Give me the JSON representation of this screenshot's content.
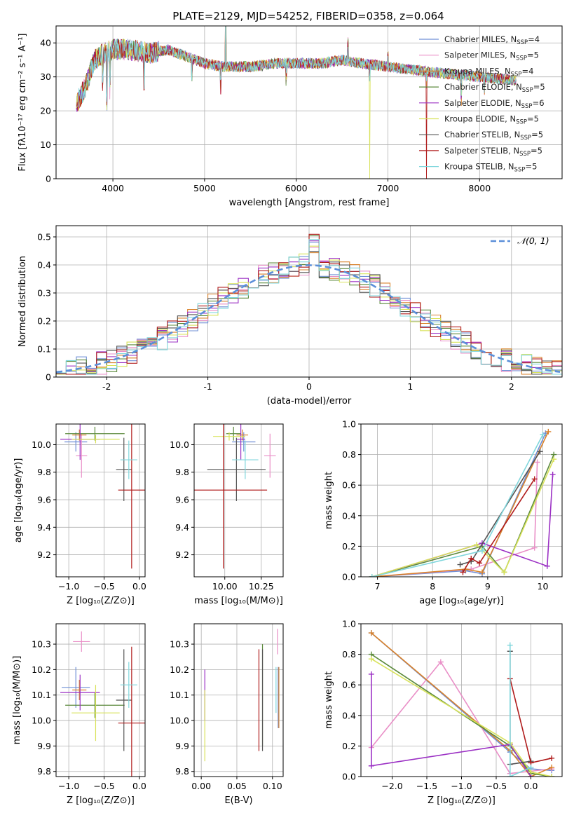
{
  "title": "PLATE=2129, MJD=54252, FIBERID=0358, z=0.064",
  "colors": [
    "#6f8fd6",
    "#e98fc7",
    "#d9822b",
    "#5c8a3c",
    "#9b30c4",
    "#d8e25a",
    "#555555",
    "#b01c1c",
    "#7fd6dc"
  ],
  "chart_data": [
    {
      "type": "line",
      "id": "spectrum",
      "xlabel": "wavelength [Angstrom, rest frame]",
      "ylabel": "Flux [fλ10⁻¹⁷ erg cm⁻² s⁻¹ A⁻¹]",
      "xlim": [
        3380,
        8900
      ],
      "ylim": [
        0,
        45
      ],
      "xticks": [
        4000,
        5000,
        6000,
        7000,
        8000
      ],
      "yticks": [
        0,
        10,
        20,
        30,
        40
      ],
      "x_range": [
        3600,
        8400
      ],
      "continuum_anchors": [
        [
          3600,
          22
        ],
        [
          3700,
          27
        ],
        [
          3800,
          35
        ],
        [
          3900,
          37
        ],
        [
          4000,
          38
        ],
        [
          4200,
          38
        ],
        [
          4400,
          37
        ],
        [
          4600,
          38
        ],
        [
          4800,
          36
        ],
        [
          5000,
          34
        ],
        [
          5200,
          33
        ],
        [
          5500,
          33
        ],
        [
          5800,
          34
        ],
        [
          6000,
          34
        ],
        [
          6300,
          34
        ],
        [
          6500,
          35
        ],
        [
          6700,
          34
        ],
        [
          7000,
          33
        ],
        [
          7300,
          32
        ],
        [
          7600,
          31
        ],
        [
          8000,
          30
        ],
        [
          8400,
          29
        ]
      ],
      "spikes": [
        [
          3933,
          -20
        ],
        [
          3968,
          -12
        ],
        [
          3890,
          -8
        ],
        [
          4340,
          -10
        ],
        [
          4861,
          -6
        ],
        [
          5175,
          -8
        ],
        [
          5230,
          20
        ],
        [
          5890,
          -6
        ],
        [
          6563,
          6
        ],
        [
          6800,
          -34
        ],
        [
          7420,
          -34
        ],
        [
          7000,
          4
        ],
        [
          7800,
          -8
        ],
        [
          8050,
          -4
        ]
      ],
      "legend": [
        {
          "name": "Chabrier MILES",
          "nssp": "4"
        },
        {
          "name": "Salpeter MILES",
          "nssp": "5"
        },
        {
          "name": "Kroupa MILES",
          "nssp": "4"
        },
        {
          "name": "Chabrier ELODIE",
          "nssp": "5"
        },
        {
          "name": "Salpeter ELODIE",
          "nssp": "6"
        },
        {
          "name": "Kroupa ELODIE",
          "nssp": "5"
        },
        {
          "name": "Chabrier STELIB",
          "nssp": "5"
        },
        {
          "name": "Salpeter STELIB",
          "nssp": "5"
        },
        {
          "name": "Kroupa STELIB",
          "nssp": "5"
        }
      ],
      "legend_placement": "upper right"
    },
    {
      "type": "histogram",
      "id": "residuals",
      "xlabel": "(data-model)/error",
      "ylabel": "Normed distribution",
      "xlim": [
        -2.5,
        2.5
      ],
      "ylim": [
        0,
        0.54
      ],
      "xticks": [
        -2,
        -1,
        0,
        1,
        2
      ],
      "yticks": [
        0.0,
        0.1,
        0.2,
        0.3,
        0.4,
        0.5
      ],
      "bin_width": 0.1,
      "gaussian_label": "𝒩(0, 1)",
      "legend_placement": "upper right"
    },
    {
      "type": "errorbar",
      "id": "age_vs_Z",
      "xlabel": "Z [log₁₀(Z/Z⊙)]",
      "ylabel": "age  [log₁₀(age/yr)]",
      "xlim": [
        -1.18,
        0.08
      ],
      "ylim": [
        9.04,
        10.15
      ],
      "xticks": [
        -1.0,
        -0.5,
        0.0
      ],
      "xticklabels": [
        "−1.0",
        "−0.5",
        "0.0"
      ],
      "yticks": [
        9.2,
        9.4,
        9.6,
        9.8,
        10.0
      ],
      "points": [
        {
          "x": -0.9,
          "xerr": 0.16,
          "y": 10.02,
          "yerr": 0.07
        },
        {
          "x": -0.82,
          "xerr": 0.08,
          "y": 9.92,
          "yerr": 0.16
        },
        {
          "x": -0.85,
          "xerr": 0.1,
          "y": 10.07,
          "yerr": 0.04
        },
        {
          "x": -0.63,
          "xerr": 0.42,
          "y": 10.08,
          "yerr": 0.05
        },
        {
          "x": -0.84,
          "xerr": 0.28,
          "y": 10.04,
          "yerr": 0.15
        },
        {
          "x": -0.62,
          "xerr": 0.34,
          "y": 10.04,
          "yerr": 0.03
        },
        {
          "x": -0.22,
          "xerr": 0.11,
          "y": 9.82,
          "yerr": 0.23
        },
        {
          "x": -0.11,
          "xerr": 0.19,
          "y": 9.67,
          "yerr": 0.57
        },
        {
          "x": -0.15,
          "xerr": 0.12,
          "y": 9.89,
          "yerr": 0.14
        }
      ]
    },
    {
      "type": "errorbar",
      "id": "age_vs_mass",
      "xlabel": "mass [log₁₀(M/M⊙)]",
      "xlim": [
        9.79,
        10.4
      ],
      "ylim": [
        9.04,
        10.15
      ],
      "xticks": [
        10.0,
        10.25
      ],
      "xticklabels": [
        "10.00",
        "10.25"
      ],
      "yticks": [
        9.2,
        9.4,
        9.6,
        9.8,
        10.0
      ],
      "points": [
        {
          "x": 10.13,
          "xerr": 0.08,
          "y": 10.02,
          "yerr": 0.07
        },
        {
          "x": 10.31,
          "xerr": 0.04,
          "y": 9.92,
          "yerr": 0.16
        },
        {
          "x": 10.12,
          "xerr": 0.04,
          "y": 10.07,
          "yerr": 0.04
        },
        {
          "x": 10.06,
          "xerr": 0.05,
          "y": 10.08,
          "yerr": 0.05
        },
        {
          "x": 10.11,
          "xerr": 0.03,
          "y": 10.04,
          "yerr": 0.15
        },
        {
          "x": 10.03,
          "xerr": 0.11,
          "y": 10.06,
          "yerr": 0.03
        },
        {
          "x": 10.08,
          "xerr": 0.2,
          "y": 9.82,
          "yerr": 0.23
        },
        {
          "x": 9.99,
          "xerr": 0.3,
          "y": 9.67,
          "yerr": 0.57
        },
        {
          "x": 10.14,
          "xerr": 0.09,
          "y": 9.89,
          "yerr": 0.14
        }
      ]
    },
    {
      "type": "line",
      "id": "massweight_vs_age",
      "xlabel": "age  [log₁₀(age/yr)]",
      "ylabel": "mass weight",
      "xlim": [
        6.7,
        10.35
      ],
      "ylim": [
        0,
        1.0
      ],
      "xticks": [
        7,
        8,
        9,
        10
      ],
      "yticks": [
        0.0,
        0.2,
        0.4,
        0.6,
        0.8,
        1.0
      ],
      "series": [
        {
          "x": [
            6.9,
            8.6,
            8.9,
            10.05
          ],
          "y": [
            0.0,
            0.04,
            0.02,
            0.94
          ]
        },
        {
          "x": [
            6.9,
            8.7,
            9.85,
            9.9
          ],
          "y": [
            0.0,
            0.05,
            0.19,
            0.75
          ]
        },
        {
          "x": [
            6.9,
            8.6,
            8.9,
            10.1
          ],
          "y": [
            0.0,
            0.05,
            0.03,
            0.95
          ]
        },
        {
          "x": [
            6.9,
            8.9,
            9.3,
            10.2
          ],
          "y": [
            0.0,
            0.2,
            0.03,
            0.8
          ]
        },
        {
          "x": [
            6.9,
            8.9,
            10.08,
            10.18
          ],
          "y": [
            0.0,
            0.22,
            0.07,
            0.67
          ]
        },
        {
          "x": [
            6.9,
            8.8,
            9.3,
            10.2
          ],
          "y": [
            0.0,
            0.21,
            0.03,
            0.77
          ]
        },
        {
          "x": [
            8.5,
            8.7,
            9.95
          ],
          "y": [
            0.08,
            0.1,
            0.82
          ]
        },
        {
          "x": [
            8.55,
            8.7,
            8.85,
            9.85
          ],
          "y": [
            0.03,
            0.12,
            0.09,
            0.64
          ]
        },
        {
          "x": [
            6.9,
            8.9,
            10.0
          ],
          "y": [
            0.0,
            0.17,
            0.93
          ]
        }
      ]
    },
    {
      "type": "errorbar",
      "id": "mass_vs_Z",
      "xlabel": "Z [log₁₀(Z/Z⊙)]",
      "ylabel": "mass [log₁₀(M/M⊙)]",
      "xlim": [
        -1.18,
        0.08
      ],
      "ylim": [
        9.78,
        10.38
      ],
      "xticks": [
        -1.0,
        -0.5,
        0.0
      ],
      "xticklabels": [
        "−1.0",
        "−0.5",
        "0.0"
      ],
      "yticks": [
        9.8,
        9.9,
        10.0,
        10.1,
        10.2,
        10.3
      ],
      "points": [
        {
          "x": -0.9,
          "xerr": 0.2,
          "y": 10.13,
          "yerr": 0.08
        },
        {
          "x": -0.82,
          "xerr": 0.12,
          "y": 10.31,
          "yerr": 0.04
        },
        {
          "x": -0.85,
          "xerr": 0.1,
          "y": 10.12,
          "yerr": 0.04
        },
        {
          "x": -0.63,
          "xerr": 0.42,
          "y": 10.06,
          "yerr": 0.05
        },
        {
          "x": -0.84,
          "xerr": 0.28,
          "y": 10.11,
          "yerr": 0.07
        },
        {
          "x": -0.62,
          "xerr": 0.34,
          "y": 10.03,
          "yerr": 0.11
        },
        {
          "x": -0.22,
          "xerr": 0.11,
          "y": 10.08,
          "yerr": 0.2
        },
        {
          "x": -0.11,
          "xerr": 0.19,
          "y": 9.99,
          "yerr": 0.3
        },
        {
          "x": -0.15,
          "xerr": 0.12,
          "y": 10.14,
          "yerr": 0.09
        }
      ]
    },
    {
      "type": "errorbar",
      "id": "mass_vs_ebv",
      "xlabel": "E(B-V)",
      "xlim": [
        -0.01,
        0.115
      ],
      "ylim": [
        9.78,
        10.38
      ],
      "xticks": [
        0.0,
        0.05,
        0.1
      ],
      "xticklabels": [
        "0.00",
        "0.05",
        "0.10"
      ],
      "yticks": [
        9.8,
        9.9,
        10.0,
        10.1,
        10.2,
        10.3
      ],
      "points": [
        {
          "x": 0.108,
          "y": 10.09,
          "yerr": 0.12
        },
        {
          "x": 0.107,
          "y": 10.31,
          "yerr": 0.05
        },
        {
          "x": 0.109,
          "y": 10.09,
          "yerr": 0.12
        },
        {
          "x": 0.086,
          "y": 10.1,
          "yerr": 0.2
        },
        {
          "x": 0.005,
          "y": 10.1,
          "yerr": 0.1
        },
        {
          "x": 0.005,
          "y": 9.98,
          "yerr": 0.14
        },
        {
          "x": 0.086,
          "y": 10.08,
          "yerr": 0.2
        },
        {
          "x": 0.081,
          "y": 10.08,
          "yerr": 0.2
        },
        {
          "x": 0.105,
          "y": 10.12,
          "yerr": 0.09
        }
      ]
    },
    {
      "type": "line",
      "id": "massweight_vs_Z",
      "xlabel": "Z [log₁₀(Z/Z⊙)]",
      "ylabel": "mass weight",
      "xlim": [
        -2.45,
        0.45
      ],
      "ylim": [
        0,
        1.0
      ],
      "xticks": [
        -2.0,
        -1.5,
        -1.0,
        -0.5,
        0.0
      ],
      "xticklabels": [
        "−2.0",
        "−1.5",
        "−1.0",
        "−0.5",
        "0.0"
      ],
      "yticks": [
        0.0,
        0.2,
        0.4,
        0.6,
        0.8,
        1.0
      ],
      "series": [
        {
          "x": [
            -2.3,
            -0.3,
            0.0,
            0.3
          ],
          "y": [
            0.94,
            0.16,
            0.05,
            0.04
          ]
        },
        {
          "x": [
            -2.3,
            -1.3,
            -0.3,
            0.3
          ],
          "y": [
            0.19,
            0.75,
            0.02,
            0.05
          ]
        },
        {
          "x": [
            -2.3,
            -0.3,
            0.0,
            0.3
          ],
          "y": [
            0.94,
            0.17,
            0.0,
            0.06
          ]
        },
        {
          "x": [
            -2.3,
            -0.3,
            0.0,
            0.3
          ],
          "y": [
            0.8,
            0.2,
            0.02,
            0.0
          ]
        },
        {
          "x": [
            -2.3,
            -2.3,
            -0.3,
            0.0
          ],
          "y": [
            0.67,
            0.07,
            0.21,
            0.0
          ]
        },
        {
          "x": [
            -2.3,
            -0.3,
            0.0,
            0.3
          ],
          "y": [
            0.77,
            0.22,
            0.03,
            0.0
          ]
        },
        {
          "x": [
            -0.3,
            -0.3,
            0.0
          ],
          "y": [
            0.82,
            0.08,
            0.1
          ]
        },
        {
          "x": [
            -0.3,
            0.0,
            0.3
          ],
          "y": [
            0.64,
            0.09,
            0.12
          ]
        },
        {
          "x": [
            -0.3,
            -0.3,
            0.0
          ],
          "y": [
            0.86,
            0.0,
            0.06
          ]
        }
      ]
    }
  ]
}
